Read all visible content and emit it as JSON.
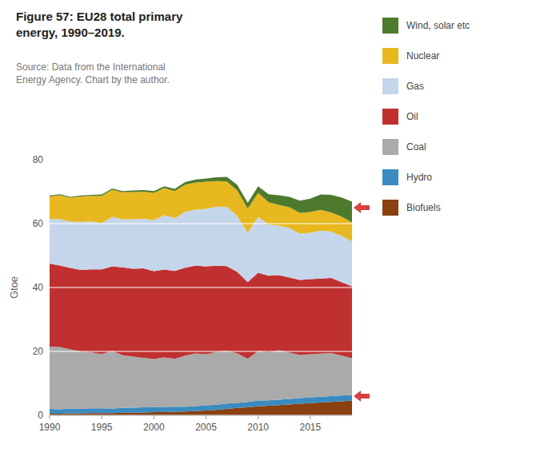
{
  "chart_data": {
    "type": "area",
    "stacked": true,
    "title": "Figure 57: EU28 total primary\nenergy, 1990–2019.",
    "annotations": [
      "Source: Data from the International\nEnergy Agency. Chart by the author."
    ],
    "y_label": "Gtoe",
    "x": [
      1990,
      1991,
      1992,
      1993,
      1994,
      1995,
      1996,
      1997,
      1998,
      1999,
      2000,
      2001,
      2002,
      2003,
      2004,
      2005,
      2006,
      2007,
      2008,
      2009,
      2010,
      2011,
      2012,
      2013,
      2014,
      2015,
      2016,
      2017,
      2018,
      2019
    ],
    "series": [
      {
        "name": "Biofuels",
        "color": "#8B4010",
        "values": [
          0.5,
          0.5,
          0.6,
          0.6,
          0.7,
          0.7,
          0.7,
          0.8,
          0.8,
          0.9,
          1.0,
          1.0,
          1.1,
          1.2,
          1.3,
          1.5,
          1.7,
          2.0,
          2.3,
          2.5,
          2.8,
          3.0,
          3.2,
          3.4,
          3.6,
          3.8,
          4.0,
          4.2,
          4.4,
          4.6
        ]
      },
      {
        "name": "Hydro",
        "color": "#3A8BBF",
        "values": [
          1.5,
          1.4,
          1.5,
          1.4,
          1.5,
          1.5,
          1.4,
          1.5,
          1.6,
          1.6,
          1.6,
          1.6,
          1.6,
          1.5,
          1.6,
          1.6,
          1.6,
          1.7,
          1.6,
          1.7,
          1.8,
          1.7,
          1.7,
          1.7,
          1.8,
          1.8,
          1.8,
          1.8,
          1.8,
          1.8
        ]
      },
      {
        "name": "Coal",
        "color": "#AAAAAA",
        "values": [
          19.5,
          19.5,
          18.5,
          18.0,
          17.5,
          17.0,
          18.0,
          16.5,
          16.0,
          15.5,
          15.0,
          15.5,
          15.0,
          16.0,
          16.5,
          16.0,
          16.5,
          16.5,
          15.5,
          13.5,
          15.5,
          15.0,
          15.5,
          14.5,
          13.5,
          13.5,
          13.5,
          13.5,
          12.5,
          11.5
        ]
      },
      {
        "name": "Oil",
        "color": "#C13030",
        "values": [
          26.0,
          25.5,
          25.5,
          25.5,
          26.0,
          26.5,
          26.5,
          27.5,
          27.5,
          28.0,
          27.5,
          27.5,
          27.5,
          27.5,
          27.5,
          27.5,
          27.0,
          26.5,
          25.5,
          24.0,
          24.5,
          24.0,
          23.5,
          23.5,
          23.5,
          23.5,
          23.5,
          23.5,
          23.0,
          22.5
        ]
      },
      {
        "name": "Gas",
        "color": "#C5D5EA",
        "values": [
          14.0,
          14.5,
          14.5,
          15.0,
          15.0,
          14.5,
          15.5,
          15.0,
          15.5,
          15.5,
          16.0,
          17.0,
          16.5,
          17.5,
          17.5,
          18.0,
          18.5,
          18.5,
          17.5,
          15.5,
          17.5,
          16.0,
          15.5,
          15.5,
          14.5,
          14.5,
          15.0,
          14.5,
          14.5,
          14.0
        ]
      },
      {
        "name": "Nuclear",
        "color": "#E8B820",
        "values": [
          7.0,
          7.5,
          7.5,
          8.0,
          8.0,
          8.5,
          8.5,
          8.5,
          8.5,
          8.5,
          8.5,
          8.5,
          8.5,
          8.5,
          8.5,
          8.5,
          8.0,
          8.0,
          8.0,
          7.5,
          7.5,
          7.0,
          6.5,
          6.5,
          6.5,
          6.5,
          6.5,
          6.0,
          6.0,
          6.0
        ]
      },
      {
        "name": "Wind, solar etc",
        "color": "#4E7A2E",
        "values": [
          0.3,
          0.3,
          0.3,
          0.3,
          0.3,
          0.4,
          0.4,
          0.4,
          0.5,
          0.5,
          0.6,
          0.6,
          0.7,
          0.8,
          0.9,
          1.0,
          1.2,
          1.4,
          1.7,
          1.8,
          2.1,
          2.5,
          3.0,
          3.3,
          3.8,
          4.2,
          4.8,
          5.5,
          6.0,
          6.5
        ]
      }
    ],
    "xlim": [
      1990,
      2019
    ],
    "xticks": [
      1990,
      1995,
      2000,
      2005,
      2010,
      2015
    ],
    "ylim": [
      0,
      80
    ],
    "yticks": [
      0,
      20,
      40,
      60,
      80
    ],
    "grid": true,
    "arrow_y": [
      65,
      6
    ],
    "arrow_color": "#D94040"
  }
}
